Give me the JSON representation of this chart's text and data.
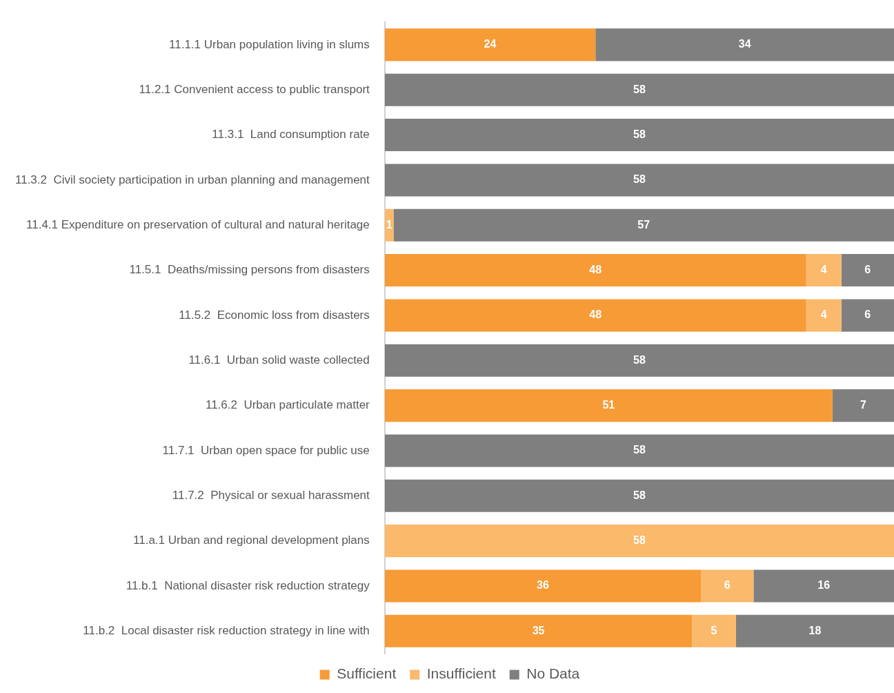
{
  "chart_data": {
    "type": "bar",
    "orientation": "horizontal",
    "stacked": true,
    "data_labels": true,
    "legend": "bottom",
    "tick_labels": "y",
    "categories": [
      "11.1.1 Urban population living in slums",
      "11.2.1 Convenient access to public transport",
      "11.3.1  Land consumption rate",
      "11.3.2  Civil society participation in urban planning and management",
      "11.4.1 Expenditure on preservation of cultural and natural heritage",
      "11.5.1  Deaths/missing persons from disasters",
      "11.5.2  Economic loss from disasters",
      "11.6.1  Urban solid waste collected",
      "11.6.2  Urban particulate matter",
      "11.7.1  Urban open space for public use",
      "11.7.2  Physical or sexual harassment",
      "11.a.1 Urban and regional development plans",
      "11.b.1  National disaster risk reduction strategy",
      "11.b.2  Local disaster risk reduction strategy in line with"
    ],
    "series": [
      {
        "name": "Sufficient",
        "color": "#f79b36",
        "values": [
          24,
          null,
          null,
          null,
          null,
          48,
          48,
          null,
          51,
          null,
          null,
          null,
          36,
          35
        ]
      },
      {
        "name": "Insufficient",
        "color": "#fbb96c",
        "values": [
          null,
          null,
          null,
          null,
          1,
          4,
          4,
          null,
          null,
          null,
          null,
          58,
          6,
          5
        ]
      },
      {
        "name": "No Data",
        "color": "#7f7f7f",
        "values": [
          34,
          58,
          58,
          58,
          57,
          6,
          6,
          58,
          7,
          58,
          58,
          null,
          16,
          18
        ]
      }
    ]
  }
}
